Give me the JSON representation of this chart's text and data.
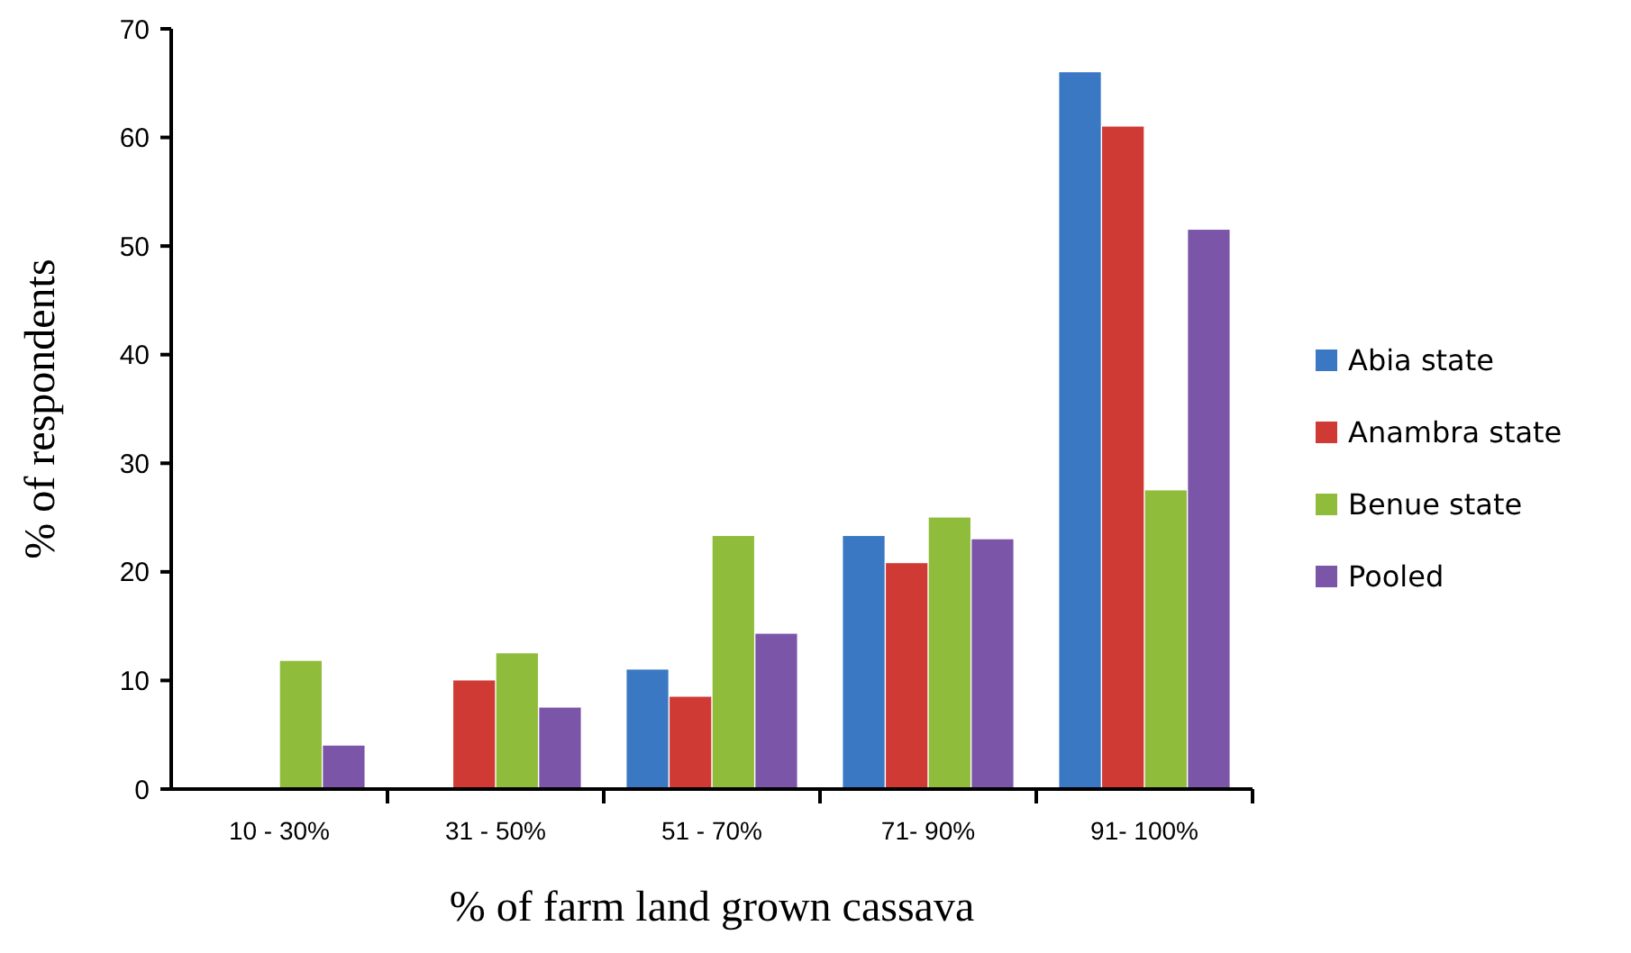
{
  "chart_data": {
    "type": "bar",
    "xlabel": "% of farm land grown cassava",
    "ylabel": "% of respondents",
    "categories": [
      "10 - 30%",
      "31 - 50%",
      "51 - 70%",
      "71- 90%",
      "91- 100%"
    ],
    "series": [
      {
        "name": "Abia state",
        "color": "#3a78c4",
        "values": [
          0,
          0,
          11,
          23.3,
          66
        ]
      },
      {
        "name": "Anambra state",
        "color": "#d03a35",
        "values": [
          0,
          10,
          8.5,
          20.8,
          61
        ]
      },
      {
        "name": "Benue state",
        "color": "#8fbc3a",
        "values": [
          11.8,
          12.5,
          23.3,
          25,
          27.5
        ]
      },
      {
        "name": "Pooled",
        "color": "#7b55a8",
        "values": [
          4,
          7.5,
          14.3,
          23,
          51.5
        ]
      }
    ],
    "ylim": [
      0,
      70
    ],
    "yticks": [
      0,
      10,
      20,
      30,
      40,
      50,
      60,
      70
    ],
    "grid": false,
    "legend": "right"
  }
}
